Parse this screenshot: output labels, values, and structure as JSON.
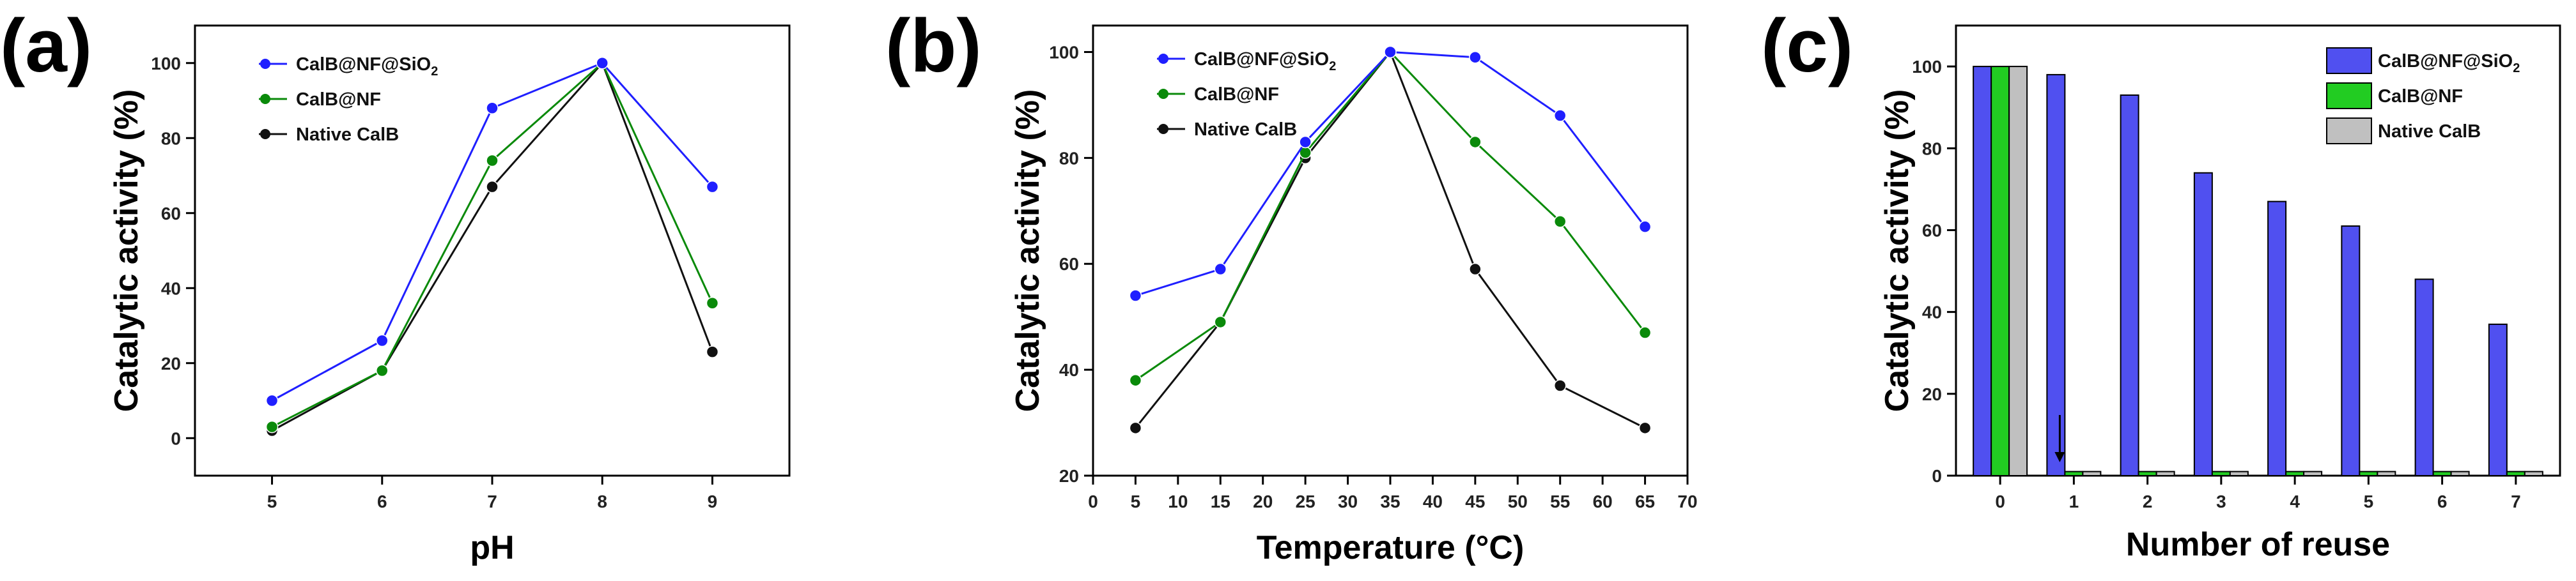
{
  "chart_data": [
    {
      "type": "line",
      "panel_label": "(a)",
      "xlabel": "pH",
      "ylabel": "Catalytic activity (%)",
      "x": [
        5,
        6,
        7,
        8,
        9
      ],
      "xlim": [
        4.3,
        9.7
      ],
      "ylim": [
        -10,
        110
      ],
      "xticks": [
        "5",
        "6",
        "7",
        "8",
        "9"
      ],
      "yticks": [
        0,
        20,
        40,
        60,
        80,
        100
      ],
      "series": [
        {
          "name": "CalB@NF@SiO",
          "name_sub": "2",
          "color": "#1f1fff",
          "values": [
            10,
            26,
            88,
            100,
            67
          ]
        },
        {
          "name": "CalB@NF",
          "color": "#0a8a0a",
          "values": [
            3,
            18,
            74,
            100,
            36
          ]
        },
        {
          "name": "Native CalB",
          "color": "#111111",
          "values": [
            2,
            18,
            67,
            100,
            23
          ]
        }
      ]
    },
    {
      "type": "line",
      "panel_label": "(b)",
      "xlabel": "Temperature (°C)",
      "ylabel": "Catalytic activity (%)",
      "x": [
        5,
        15,
        25,
        35,
        45,
        55,
        65
      ],
      "xlim": [
        0,
        70
      ],
      "ylim": [
        20,
        105
      ],
      "xticks": [
        "0",
        "5",
        "10",
        "15",
        "20",
        "25",
        "30",
        "35",
        "40",
        "45",
        "50",
        "55",
        "60",
        "65",
        "70"
      ],
      "yticks": [
        20,
        40,
        60,
        80,
        100
      ],
      "series": [
        {
          "name": "CalB@NF@SiO",
          "name_sub": "2",
          "color": "#1f1fff",
          "values": [
            54,
            59,
            83,
            100,
            99,
            88,
            67
          ]
        },
        {
          "name": "CalB@NF",
          "color": "#0a8a0a",
          "values": [
            38,
            49,
            81,
            100,
            83,
            68,
            47
          ]
        },
        {
          "name": "Native CalB",
          "color": "#111111",
          "values": [
            29,
            49,
            80,
            100,
            59,
            37,
            29
          ]
        }
      ]
    },
    {
      "type": "bar",
      "panel_label": "(c)",
      "xlabel": "Number of reuse",
      "ylabel": "Catalytic activity (%)",
      "categories": [
        "0",
        "1",
        "2",
        "3",
        "4",
        "5",
        "6",
        "7"
      ],
      "ylim": [
        0,
        110
      ],
      "yticks": [
        0,
        20,
        40,
        60,
        80,
        100
      ],
      "series": [
        {
          "name": "CalB@NF@SiO",
          "name_sub": "2",
          "color": "#5050f0",
          "values": [
            100,
            98,
            93,
            74,
            67,
            61,
            48,
            37
          ]
        },
        {
          "name": "CalB@NF",
          "color": "#22cc22",
          "values": [
            100,
            1,
            1,
            1,
            1,
            1,
            1,
            1
          ]
        },
        {
          "name": "Native CalB",
          "color": "#c0c0c0",
          "values": [
            100,
            1,
            1,
            1,
            1,
            1,
            1,
            1
          ]
        }
      ],
      "annotation": "arrow pointing down at reuse 1"
    }
  ]
}
